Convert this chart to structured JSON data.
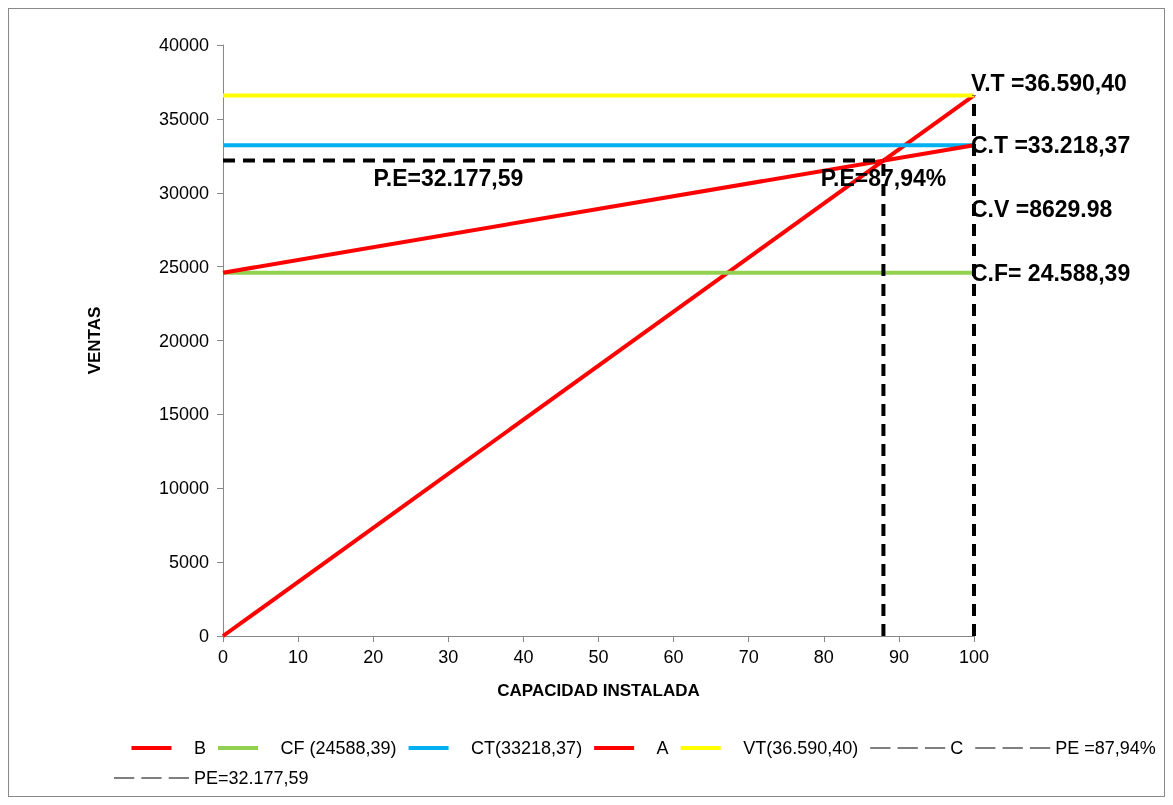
{
  "chart_data": {
    "type": "line",
    "xlabel": "CAPACIDAD INSTALADA",
    "ylabel": "VENTAS",
    "xlim": [
      0,
      100
    ],
    "xticks": [
      0,
      10,
      20,
      30,
      40,
      50,
      60,
      70,
      80,
      90,
      100
    ],
    "ylim": [
      0,
      40000
    ],
    "yticks": [
      0,
      5000,
      10000,
      15000,
      20000,
      25000,
      30000,
      35000,
      40000
    ],
    "grid": false,
    "legend": "bottom",
    "marker": "none",
    "series": [
      {
        "name": "B",
        "color": "#ff0000",
        "line_style": "solid",
        "x": [
          0,
          100
        ],
        "values": [
          0,
          36590.4
        ]
      },
      {
        "name": "CF (24588,39)",
        "color": "#92d050",
        "line_style": "solid",
        "x": [
          0,
          100
        ],
        "values": [
          24588.39,
          24588.39
        ]
      },
      {
        "name": "CT(33218,37)",
        "color": "#00b0f0",
        "line_style": "solid",
        "x": [
          0,
          100
        ],
        "values": [
          33218.37,
          33218.37
        ]
      },
      {
        "name": "A",
        "color": "#ff0000",
        "line_style": "solid",
        "x": [
          0,
          100
        ],
        "values": [
          24588.39,
          33218.37
        ]
      },
      {
        "name": "VT(36.590,40)",
        "color": "#ffff00",
        "line_style": "solid",
        "x": [
          0,
          100
        ],
        "values": [
          36590.4,
          36590.4
        ]
      },
      {
        "name": "C",
        "color": "#000000",
        "line_style": "dashed",
        "x": [
          100,
          100
        ],
        "values": [
          0,
          36590.4
        ]
      },
      {
        "name": "PE =87,94%",
        "color": "#000000",
        "line_style": "dashed",
        "x": [
          87.94,
          87.94
        ],
        "values": [
          0,
          32177.59
        ]
      },
      {
        "name": "PE=32.177,59",
        "color": "#000000",
        "line_style": "dashed",
        "x": [
          0,
          87.94
        ],
        "values": [
          32177.59,
          32177.59
        ]
      }
    ],
    "annotations": [
      {
        "text": "V.T =36.590,40",
        "x": 100,
        "y": 36590.4
      },
      {
        "text": "C.T =33.218,37",
        "x": 100,
        "y": 33218.37
      },
      {
        "text": "P.E=32.177,59",
        "x": 30,
        "y": 32177.59
      },
      {
        "text": "P.E=87,94%",
        "x": 87.94,
        "y": 32177.59
      },
      {
        "text": "C.V =8629.98",
        "x": 100,
        "y": 28900
      },
      {
        "text": "C.F= 24.588,39",
        "x": 100,
        "y": 24588.39
      }
    ]
  }
}
